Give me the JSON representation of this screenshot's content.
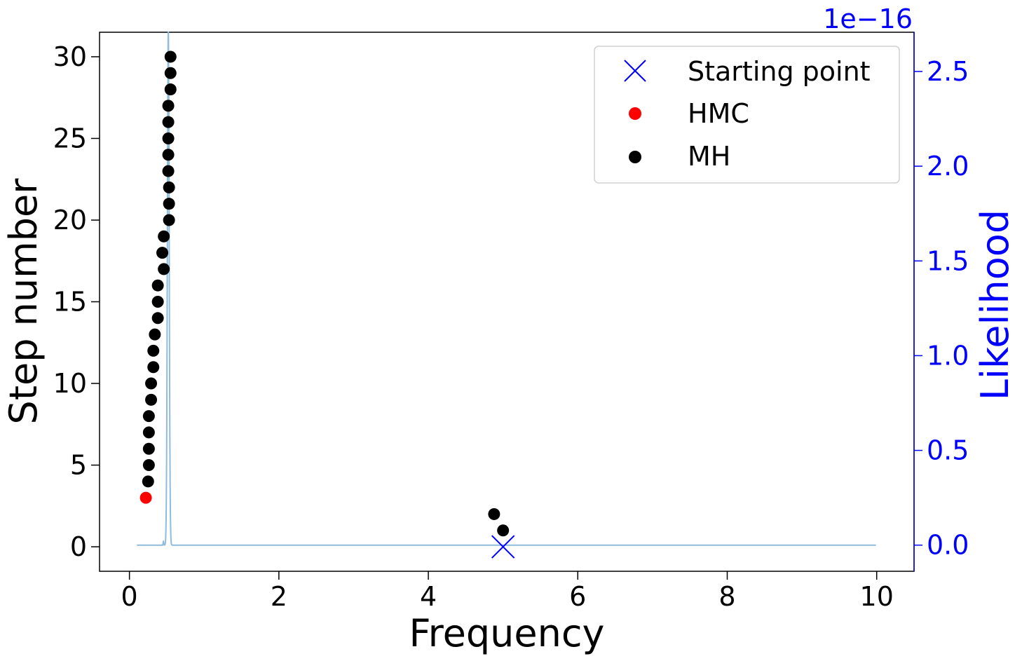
{
  "chart_data": {
    "type": "scatter",
    "xlabel": "Frequency",
    "ylabel": "Step number",
    "y2label": "Likelihood",
    "y2_offset_text": "1e−16",
    "xlim": [
      -0.4,
      10.5
    ],
    "ylim": [
      -1.5,
      31.5
    ],
    "y2lim": [
      -1.38e-17,
      2.707e-16
    ],
    "x_ticks": [
      0,
      2,
      4,
      6,
      8,
      10
    ],
    "x_tick_labels": [
      "0",
      "2",
      "4",
      "6",
      "8",
      "10"
    ],
    "y_ticks": [
      0,
      5,
      10,
      15,
      20,
      25,
      30
    ],
    "y_tick_labels": [
      "0",
      "5",
      "10",
      "15",
      "20",
      "25",
      "30"
    ],
    "y2_ticks": [
      0,
      0.5,
      1.0,
      1.5,
      2.0,
      2.5
    ],
    "y2_tick_labels": [
      "0.0",
      "0.5",
      "1.0",
      "1.5",
      "2.0",
      "2.5"
    ],
    "legend_position": "top-right",
    "grid": false,
    "colors": {
      "starting_point": "#0000ff",
      "hmc": "#ff0000",
      "mh": "#000000",
      "likelihood": "#8fbcdb",
      "right_axis": "#0000ff"
    },
    "series": [
      {
        "name": "Starting point",
        "marker": "x",
        "points": [
          [
            5.0,
            0
          ]
        ]
      },
      {
        "name": "HMC",
        "marker": "circle",
        "points": [
          [
            0.22,
            3
          ]
        ]
      },
      {
        "name": "MH",
        "marker": "circle",
        "points": [
          [
            5.0,
            1
          ],
          [
            4.88,
            2
          ],
          [
            0.25,
            4
          ],
          [
            0.26,
            5
          ],
          [
            0.26,
            6
          ],
          [
            0.26,
            7
          ],
          [
            0.26,
            8
          ],
          [
            0.29,
            9
          ],
          [
            0.29,
            10
          ],
          [
            0.32,
            11
          ],
          [
            0.32,
            12
          ],
          [
            0.34,
            13
          ],
          [
            0.38,
            14
          ],
          [
            0.38,
            15
          ],
          [
            0.38,
            16
          ],
          [
            0.46,
            17
          ],
          [
            0.44,
            18
          ],
          [
            0.46,
            19
          ],
          [
            0.53,
            20
          ],
          [
            0.53,
            21
          ],
          [
            0.53,
            22
          ],
          [
            0.52,
            23
          ],
          [
            0.52,
            24
          ],
          [
            0.52,
            25
          ],
          [
            0.52,
            26
          ],
          [
            0.52,
            27
          ],
          [
            0.55,
            28
          ],
          [
            0.55,
            29
          ],
          [
            0.55,
            30
          ]
        ]
      }
    ],
    "likelihood_curve": {
      "axis": "right",
      "x_range": [
        0.1,
        10.0
      ],
      "peak_x": 0.52,
      "peak_width": 0.012,
      "small_bump_x": 0.455,
      "small_bump_value": 2e-18,
      "peak_value": 2.71e-16
    }
  }
}
